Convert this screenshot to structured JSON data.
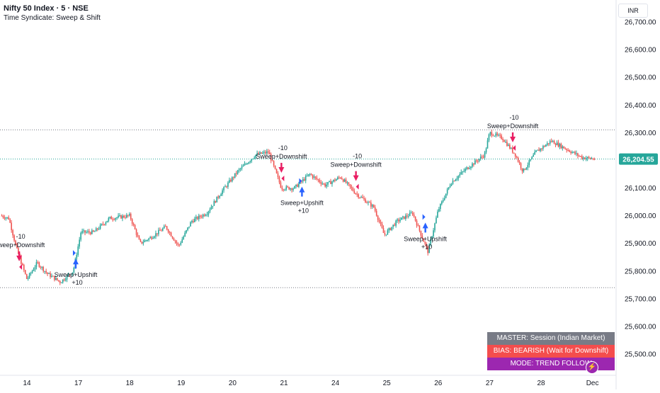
{
  "header": {
    "title": "Nifty 50 Index · 5 · NSE",
    "indicator": "Time Syndicate: Sweep & Shift"
  },
  "currency": "INR",
  "current_price_label": "26,204.55",
  "colors": {
    "up": "#26a69a",
    "down": "#ef5350",
    "price_badge": "#26a69a",
    "sell_arrow": "#e91e63",
    "buy_arrow": "#2962ff",
    "dash_master": "#787b86",
    "dash_bias": "#f44d4d",
    "dash_mode": "#9c27b0",
    "level_line": "#787b86"
  },
  "dashboard": {
    "master": "MASTER: Session (Indian Market)",
    "bias": "BIAS: BEARISH (Wait for Downshift)",
    "mode": "MODE: TREND FOLLOW",
    "bolt_icon": "lightning-bolt-icon"
  },
  "chart_data": {
    "type": "candlestick",
    "title": "Nifty 50 Index · 5 · NSE",
    "ylim": [
      25450,
      26750
    ],
    "y_ticks": [
      25500,
      25600,
      25700,
      25800,
      25900,
      26000,
      26100,
      26200,
      26300,
      26400,
      26500,
      26600,
      26700
    ],
    "y_tick_labels": [
      "25,500.00",
      "25,600.00",
      "25,700.00",
      "25,800.00",
      "25,900.00",
      "26,000.00",
      "26,100.00",
      "26,200.00",
      "26,300.00",
      "26,400.00",
      "26,500.00",
      "26,600.00",
      "26,700.00"
    ],
    "x_tick_labels": [
      "14",
      "17",
      "18",
      "19",
      "20",
      "21",
      "24",
      "25",
      "26",
      "27",
      "28",
      "Dec"
    ],
    "x_tick_positions": [
      0.5,
      1.5,
      2.5,
      3.5,
      4.5,
      5.5,
      6.5,
      7.5,
      8.5,
      9.5,
      10.5,
      11.5
    ],
    "x_range": [
      0,
      12
    ],
    "grid": false,
    "current_price": 26204.55,
    "horizontal_levels": [
      26310,
      25740
    ],
    "price_path": [
      {
        "x": 0.0,
        "y": 26000
      },
      {
        "x": 0.15,
        "y": 25990
      },
      {
        "x": 0.3,
        "y": 25880
      },
      {
        "x": 0.5,
        "y": 25770
      },
      {
        "x": 0.7,
        "y": 25830
      },
      {
        "x": 0.9,
        "y": 25790
      },
      {
        "x": 1.15,
        "y": 25760
      },
      {
        "x": 1.4,
        "y": 25800
      },
      {
        "x": 1.55,
        "y": 25940
      },
      {
        "x": 1.8,
        "y": 25940
      },
      {
        "x": 2.1,
        "y": 25990
      },
      {
        "x": 2.5,
        "y": 26000
      },
      {
        "x": 2.7,
        "y": 25900
      },
      {
        "x": 2.9,
        "y": 25920
      },
      {
        "x": 3.2,
        "y": 25960
      },
      {
        "x": 3.45,
        "y": 25890
      },
      {
        "x": 3.7,
        "y": 25980
      },
      {
        "x": 4.0,
        "y": 26010
      },
      {
        "x": 4.3,
        "y": 26090
      },
      {
        "x": 4.6,
        "y": 26160
      },
      {
        "x": 4.95,
        "y": 26220
      },
      {
        "x": 5.2,
        "y": 26230
      },
      {
        "x": 5.45,
        "y": 26100
      },
      {
        "x": 5.7,
        "y": 26100
      },
      {
        "x": 6.0,
        "y": 26150
      },
      {
        "x": 6.3,
        "y": 26110
      },
      {
        "x": 6.6,
        "y": 26140
      },
      {
        "x": 6.9,
        "y": 26080
      },
      {
        "x": 7.25,
        "y": 26030
      },
      {
        "x": 7.45,
        "y": 25930
      },
      {
        "x": 7.7,
        "y": 25980
      },
      {
        "x": 8.0,
        "y": 26010
      },
      {
        "x": 8.3,
        "y": 25870
      },
      {
        "x": 8.5,
        "y": 26020
      },
      {
        "x": 8.75,
        "y": 26120
      },
      {
        "x": 9.05,
        "y": 26170
      },
      {
        "x": 9.4,
        "y": 26220
      },
      {
        "x": 9.5,
        "y": 26300
      },
      {
        "x": 9.75,
        "y": 26280
      },
      {
        "x": 10.0,
        "y": 26220
      },
      {
        "x": 10.15,
        "y": 26160
      },
      {
        "x": 10.4,
        "y": 26230
      },
      {
        "x": 10.7,
        "y": 26270
      },
      {
        "x": 11.0,
        "y": 26240
      },
      {
        "x": 11.3,
        "y": 26210
      },
      {
        "x": 11.55,
        "y": 26205
      }
    ],
    "signals": [
      {
        "type": "sell",
        "label": "Sweep+Downshift",
        "points": "-10",
        "x": 0.35,
        "y": 25830
      },
      {
        "type": "buy",
        "label": "Sweep+Upshift",
        "points": "+10",
        "x": 1.45,
        "y": 25850
      },
      {
        "type": "sell",
        "label": "Sweep+Downshift",
        "points": "-10",
        "x": 5.45,
        "y": 26150
      },
      {
        "type": "buy",
        "label": "Sweep+Upshift",
        "points": "+10",
        "x": 5.85,
        "y": 26110
      },
      {
        "type": "sell",
        "label": "Sweep+Downshift",
        "points": "-10",
        "x": 6.9,
        "y": 26120
      },
      {
        "type": "buy",
        "label": "Sweep+Upshift",
        "points": "+10",
        "x": 8.25,
        "y": 25980
      },
      {
        "type": "sell",
        "label": "Sweep+Downshift",
        "points": "-10",
        "x": 9.95,
        "y": 26260
      }
    ]
  }
}
